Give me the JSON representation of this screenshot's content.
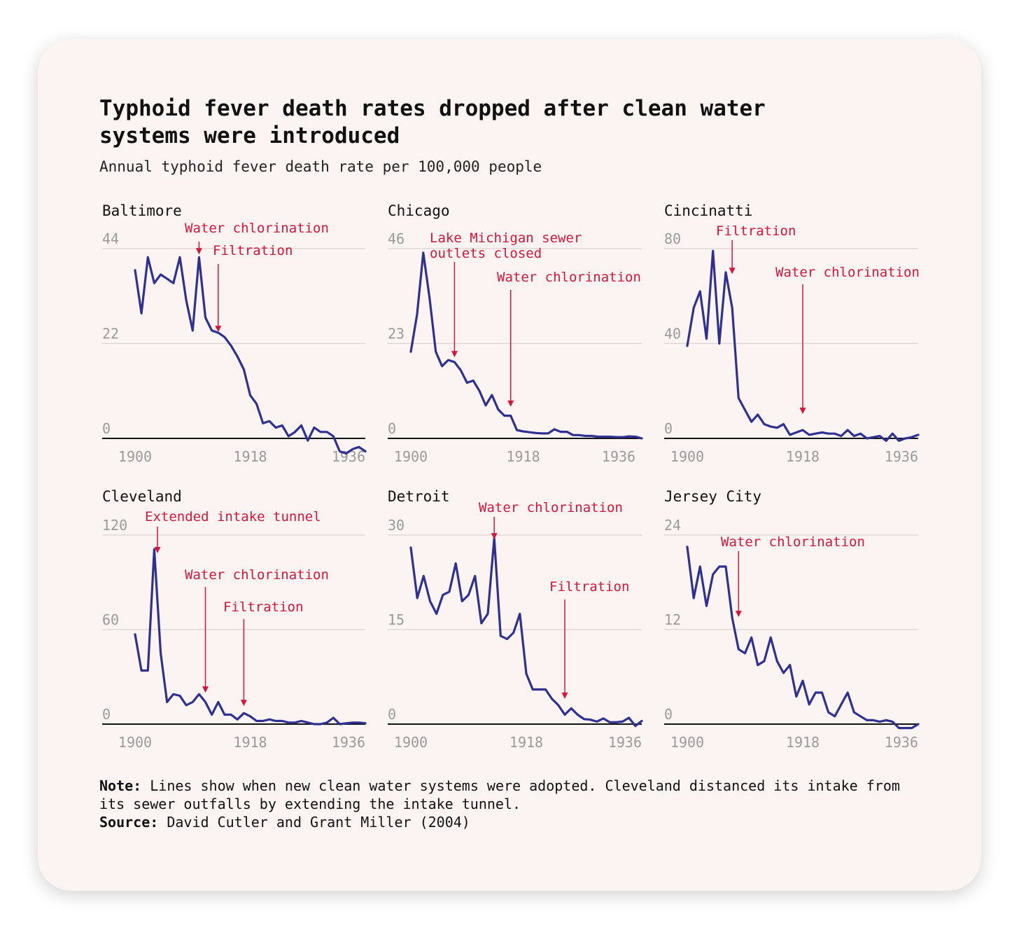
{
  "title": "Typhoid fever death rates dropped after clean water systems were introduced",
  "subtitle": "Annual typhoid fever death rate per 100,000 people",
  "note_label": "Note:",
  "note_text": "Lines show when new clean water systems were adopted. Cleveland distanced its intake from its sewer outfalls by extending the intake tunnel.",
  "source_label": "Source:",
  "source_text": "David Cutler and Grant Miller (2004)",
  "colors": {
    "line": "#2e3191",
    "annotation": "#d4163c",
    "grid": "#d9d4d3",
    "axis": "#111111",
    "tick": "#9a9a9a"
  },
  "chart_data": [
    {
      "type": "line",
      "title": "Baltimore",
      "x_start": 1900,
      "ylim": [
        0,
        44
      ],
      "xticks": [
        "1900",
        "1918",
        "1936"
      ],
      "yticks": [
        "0",
        "22",
        "44"
      ],
      "values": [
        39,
        29,
        42,
        36,
        38,
        37,
        36,
        42,
        32,
        25,
        42,
        28,
        25,
        24.5,
        23.5,
        21.5,
        19,
        16,
        10,
        8,
        3.5,
        4,
        2.5,
        3,
        0.5,
        1.5,
        3,
        -0.5,
        2.5,
        1.5,
        1.5,
        0.5,
        -3,
        -3.5,
        -2.5,
        -2,
        -3
      ],
      "annotations": [
        {
          "label": "Water chlorination",
          "x_index": 10,
          "y_tip": 42.5
        },
        {
          "label": "Filtration",
          "x_index": 13,
          "y_tip": 24.5
        }
      ]
    },
    {
      "type": "line",
      "title": "Chicago",
      "x_start": 1900,
      "ylim": [
        0,
        46
      ],
      "xticks": [
        "1900",
        "1918",
        "1936"
      ],
      "yticks": [
        "0",
        "23",
        "46"
      ],
      "values": [
        21,
        30,
        45,
        34,
        21,
        17.5,
        19,
        18.5,
        16.5,
        13.5,
        14,
        11.5,
        8,
        10.5,
        7,
        5.5,
        5.5,
        2,
        1.7,
        1.5,
        1.3,
        1.2,
        1.2,
        2.2,
        1.6,
        1.6,
        0.8,
        0.8,
        0.6,
        0.6,
        0.4,
        0.4,
        0.4,
        0.3,
        0.3,
        0.5,
        0.4,
        0
      ],
      "annotations": [
        {
          "label": "Lake Michigan sewer outlets closed",
          "x_index": 7,
          "y_tip": 19.5
        },
        {
          "label": "Water chlorination",
          "x_index": 16,
          "y_tip": 7.5
        }
      ]
    },
    {
      "type": "line",
      "title": "Cincinatti",
      "x_start": 1900,
      "ylim": [
        0,
        80
      ],
      "xticks": [
        "1900",
        "1918",
        "1936"
      ],
      "yticks": [
        "0",
        "40",
        "80"
      ],
      "values": [
        39,
        55,
        62,
        42,
        79,
        40,
        70,
        55,
        17,
        12,
        7,
        10,
        6,
        5,
        4.5,
        6,
        1.5,
        2.5,
        3.5,
        1.5,
        2,
        2.5,
        2,
        2,
        1,
        3.5,
        1,
        2,
        0,
        0.5,
        1,
        -1,
        2,
        -1,
        0,
        0.5,
        1.5
      ],
      "annotations": [
        {
          "label": "Filtration",
          "x_index": 7,
          "y_tip": 69
        },
        {
          "label": "Water chlorination",
          "x_index": 18,
          "y_tip": 10
        }
      ]
    },
    {
      "type": "line",
      "title": "Cleveland",
      "x_start": 1900,
      "ylim": [
        0,
        120
      ],
      "xticks": [
        "1900",
        "1918",
        "1936"
      ],
      "yticks": [
        "0",
        "60",
        "120"
      ],
      "values": [
        57,
        34,
        34,
        111,
        45,
        14,
        19,
        18,
        12,
        14,
        19,
        14,
        6,
        14,
        6,
        6,
        3,
        7,
        5,
        2,
        2,
        3,
        2,
        2,
        1,
        1,
        2,
        1,
        0,
        0,
        1,
        4,
        0,
        0.5,
        1,
        1,
        0.5
      ],
      "annotations": [
        {
          "label": "Extended intake tunnel",
          "x_index": 3.5,
          "y_tip": 108
        },
        {
          "label": "Water chlorination",
          "x_index": 11,
          "y_tip": 19.5
        },
        {
          "label": "Filtration",
          "x_index": 17,
          "y_tip": 11
        }
      ]
    },
    {
      "type": "line",
      "title": "Detroit",
      "x_start": 1900,
      "ylim": [
        0,
        30
      ],
      "xticks": [
        "1900",
        "1918",
        "1936"
      ],
      "yticks": [
        "0",
        "15",
        "30"
      ],
      "values": [
        28,
        20,
        23.5,
        19.5,
        17.5,
        20.5,
        21,
        25.5,
        19.5,
        20.5,
        23.5,
        16,
        17.5,
        29.5,
        14,
        13.5,
        14.5,
        17.5,
        8,
        5.5,
        5.5,
        5.5,
        4,
        3,
        1.5,
        2.5,
        1.5,
        0.8,
        0.7,
        0.4,
        0.9,
        0.3,
        0.3,
        0.4,
        1,
        -0.3,
        0.5
      ],
      "annotations": [
        {
          "label": "Water chlorination",
          "x_index": 13,
          "y_tip": 29.2
        },
        {
          "label": "Filtration",
          "x_index": 24,
          "y_tip": 3.9
        }
      ]
    },
    {
      "type": "line",
      "title": "Jersey City",
      "x_start": 1900,
      "ylim": [
        0,
        24
      ],
      "xticks": [
        "1900",
        "1918",
        "1936"
      ],
      "yticks": [
        "0",
        "12",
        "24"
      ],
      "values": [
        22.5,
        16,
        20,
        15,
        19,
        20,
        20,
        13.5,
        9.5,
        9,
        11,
        7.5,
        8,
        11,
        8,
        6.5,
        7.5,
        3.5,
        5.5,
        2.5,
        4,
        4,
        1.5,
        1,
        2.5,
        4,
        1.5,
        1,
        0.5,
        0.5,
        0.3,
        0.5,
        0.3,
        -0.5,
        -0.5,
        -0.5,
        0
      ],
      "annotations": [
        {
          "label": "Water chlorination",
          "x_index": 8,
          "y_tip": 13.5
        }
      ]
    }
  ]
}
